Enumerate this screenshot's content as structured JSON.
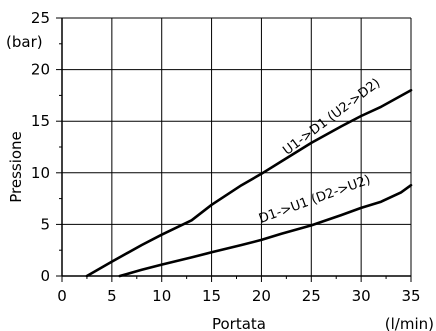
{
  "chart_data": {
    "type": "line",
    "xlabel": "Portata",
    "xunit": "(l/min)",
    "ylabel": "Pressione",
    "yunit": "(bar)",
    "xlim": [
      0,
      35
    ],
    "ylim": [
      0,
      25
    ],
    "xticks": [
      0,
      5,
      10,
      15,
      20,
      25,
      30,
      35
    ],
    "yticks": [
      0,
      5,
      10,
      15,
      20,
      25
    ],
    "grid": true,
    "series": [
      {
        "name": "U1->D1 (U2->D2)",
        "x": [
          2.5,
          5,
          8,
          10,
          13,
          15,
          18,
          20,
          22,
          25,
          28,
          30,
          32,
          35
        ],
        "y": [
          0,
          1.4,
          3.0,
          4.0,
          5.4,
          6.9,
          8.8,
          9.9,
          11.1,
          12.9,
          14.5,
          15.5,
          16.4,
          18.0
        ]
      },
      {
        "name": "D1->U1 (D2->U2)",
        "x": [
          5.8,
          8,
          10,
          13,
          15,
          18,
          20,
          22,
          25,
          28,
          30,
          32,
          34,
          35
        ],
        "y": [
          0,
          0.6,
          1.1,
          1.8,
          2.3,
          3.0,
          3.5,
          4.1,
          4.9,
          5.9,
          6.6,
          7.2,
          8.1,
          8.8
        ]
      }
    ]
  }
}
